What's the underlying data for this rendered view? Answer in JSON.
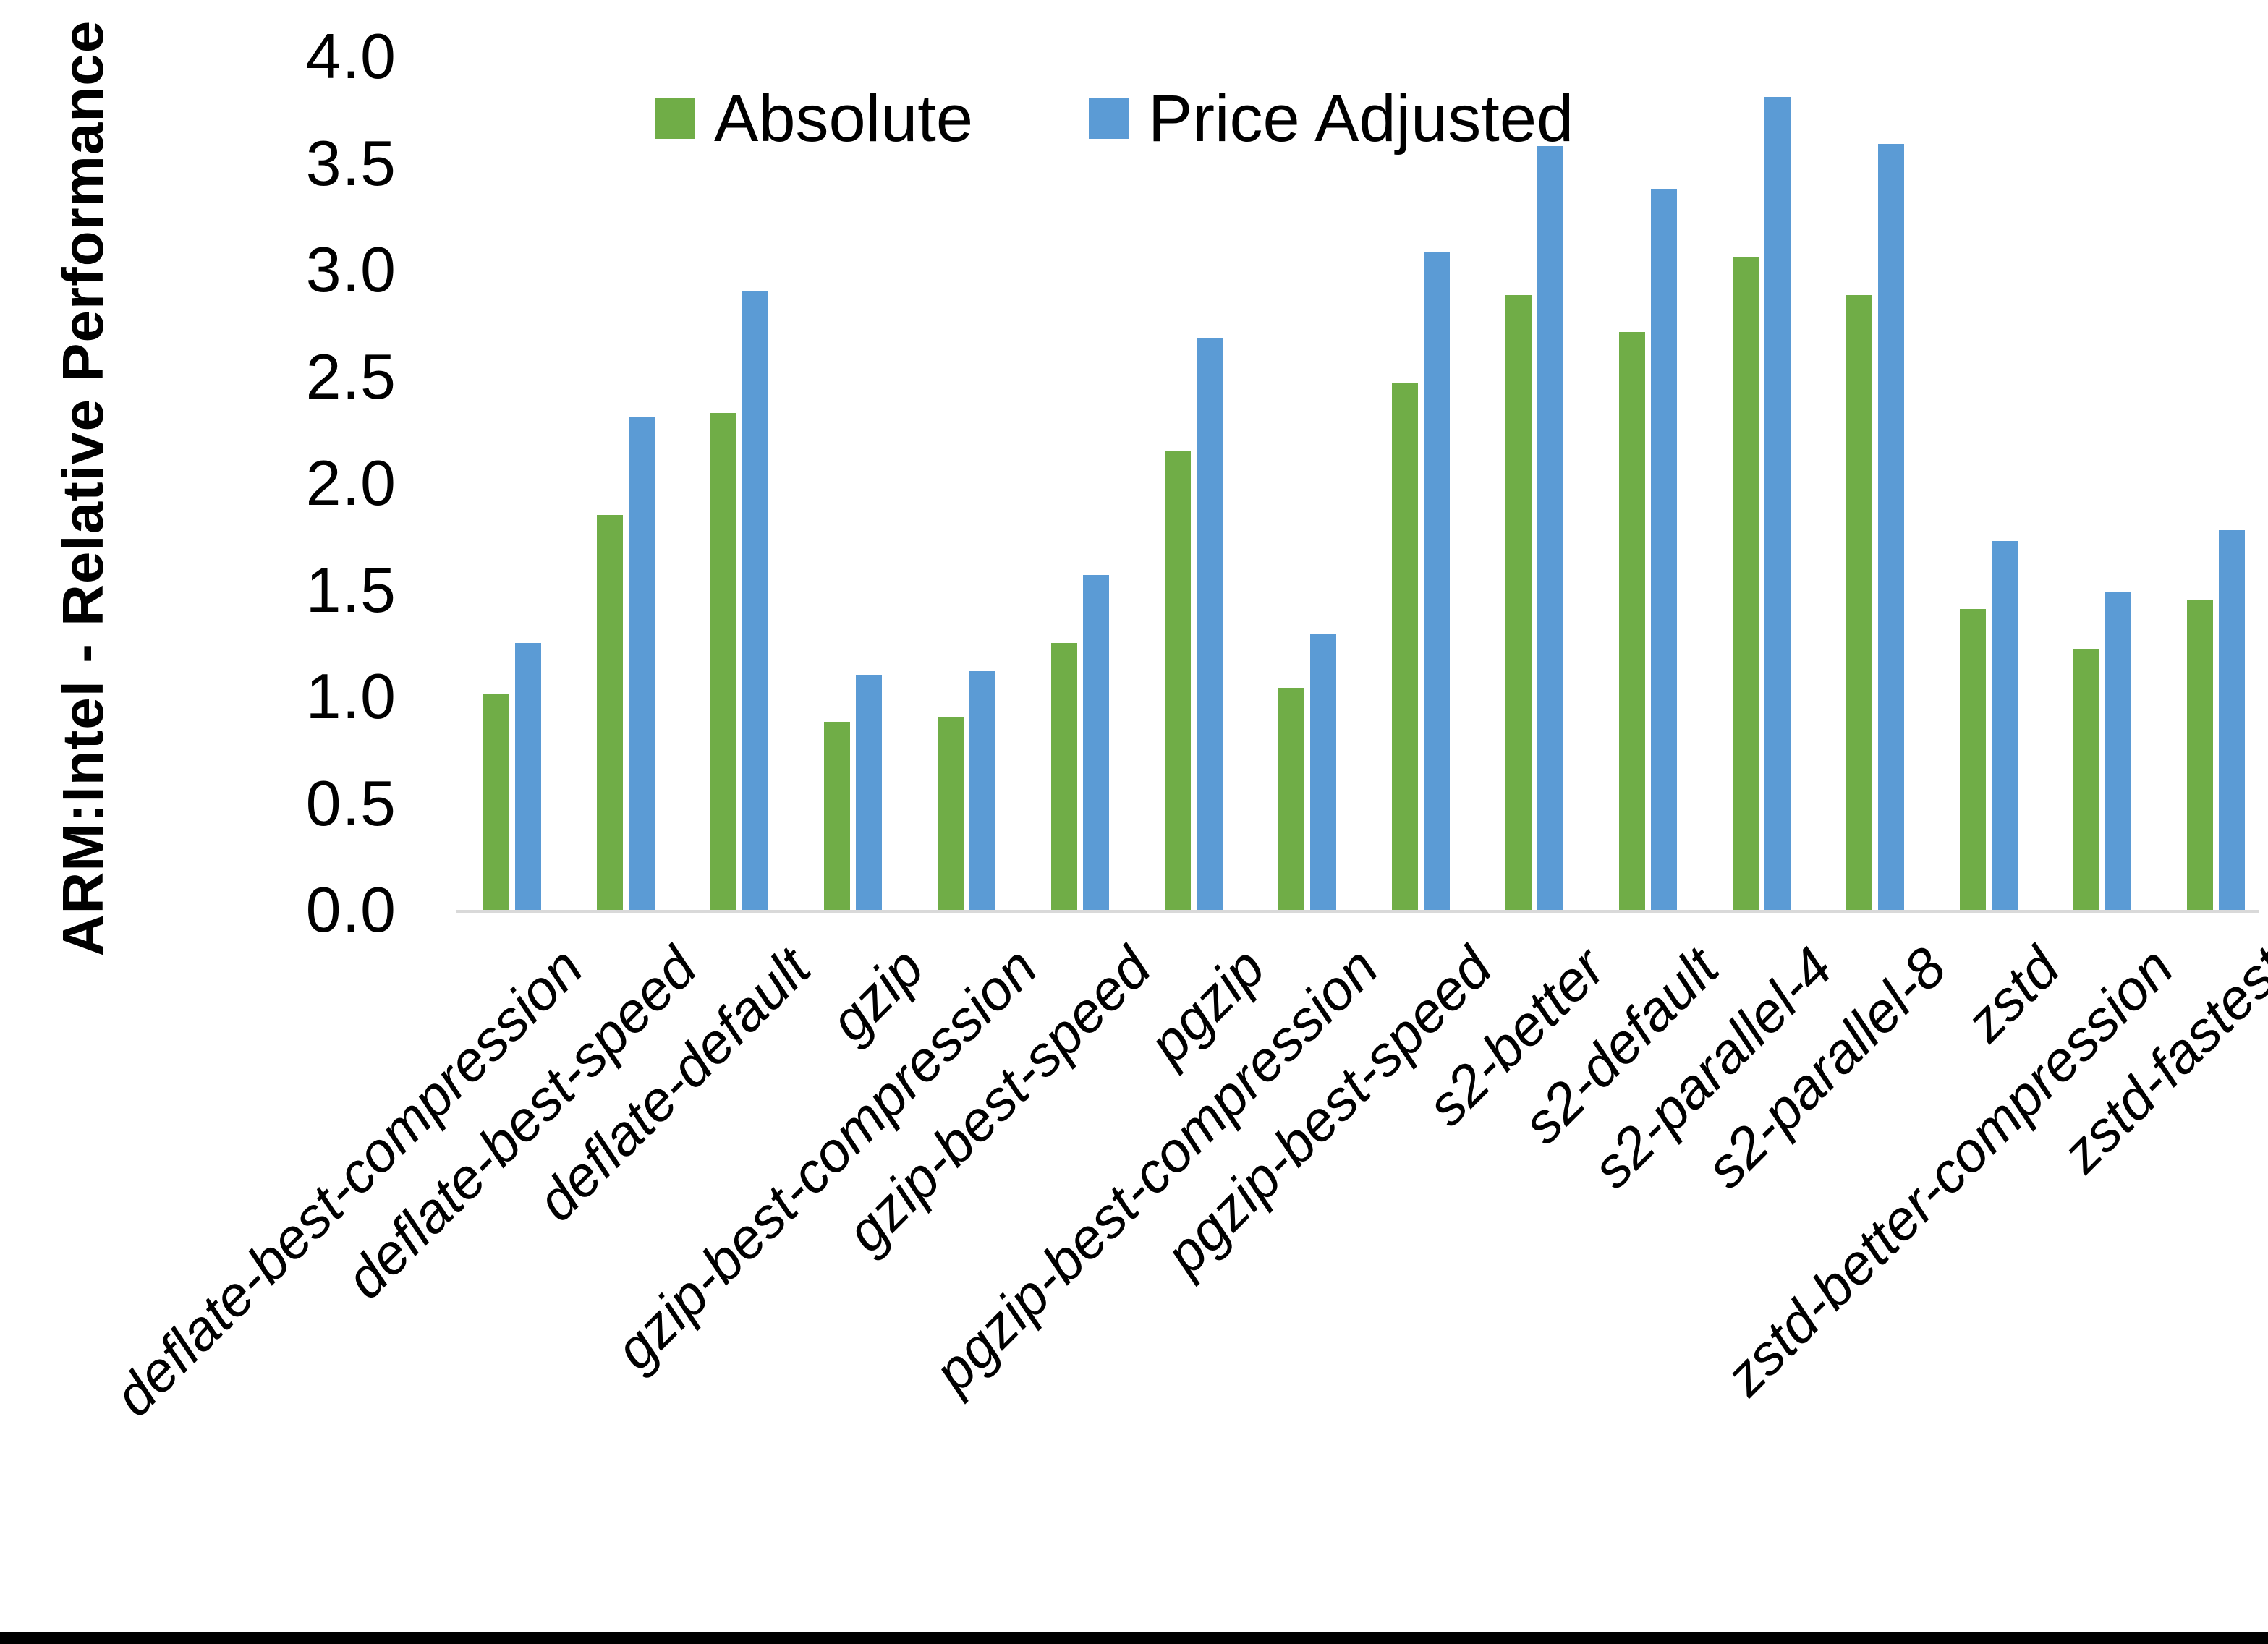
{
  "chart_data": {
    "type": "bar",
    "title": "",
    "xlabel": "",
    "ylabel": "ARM:Intel - Relative Performance",
    "ylim": [
      0.0,
      4.0
    ],
    "ytick_step": 0.5,
    "ytick_labels": [
      "0.0",
      "0.5",
      "1.0",
      "1.5",
      "2.0",
      "2.5",
      "3.0",
      "3.5",
      "4.0"
    ],
    "grid": false,
    "legend_position": "top-center-inside",
    "axis_line_color": "#d9d9d9",
    "categories": [
      "deflate-best-compression",
      "deflate-best-speed",
      "deflate-default",
      "gzip",
      "gzip-best-compression",
      "gzip-best-speed",
      "pgzip",
      "pgzip-best-compression",
      "pgzip-best-speed",
      "s2-better",
      "s2-default",
      "s2-parallel-4",
      "s2-parallel-8",
      "zstd",
      "zstd-better-compression",
      "zstd-fastest"
    ],
    "series": [
      {
        "name": "Absolute",
        "color": "#70AD47",
        "values": [
          1.01,
          1.85,
          2.33,
          0.88,
          0.9,
          1.25,
          2.15,
          1.04,
          2.47,
          2.88,
          2.71,
          3.06,
          2.88,
          1.41,
          1.22,
          1.45
        ]
      },
      {
        "name": "Price Adjusted",
        "color": "#5B9BD5",
        "values": [
          1.25,
          2.31,
          2.9,
          1.1,
          1.12,
          1.57,
          2.68,
          1.29,
          3.08,
          3.58,
          3.38,
          3.81,
          3.59,
          1.73,
          1.49,
          1.78
        ]
      }
    ]
  }
}
